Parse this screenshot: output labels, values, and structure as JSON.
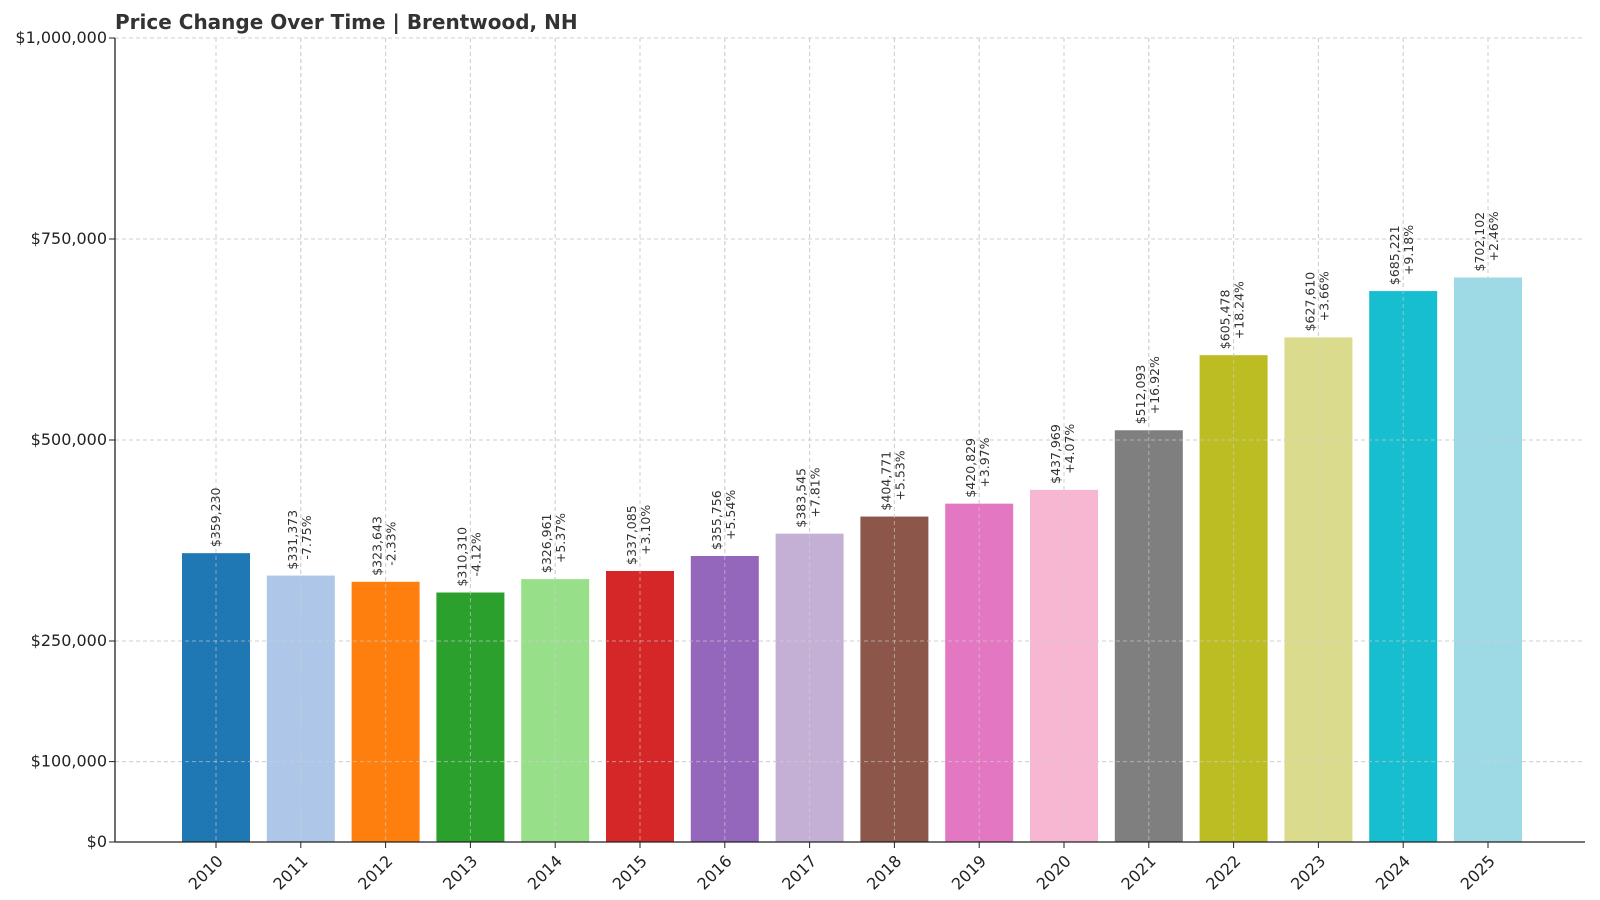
{
  "chart_data": {
    "type": "bar",
    "title": "Price Change Over Time | Brentwood, NH",
    "xlabel": "",
    "ylabel": "",
    "categories": [
      "2010",
      "2011",
      "2012",
      "2013",
      "2014",
      "2015",
      "2016",
      "2017",
      "2018",
      "2019",
      "2020",
      "2021",
      "2022",
      "2023",
      "2024",
      "2025"
    ],
    "values": [
      359230,
      331373,
      323643,
      310310,
      326961,
      337085,
      355756,
      383545,
      404771,
      420829,
      437969,
      512093,
      605478,
      627610,
      685221,
      702102
    ],
    "value_labels": [
      "$359,230",
      "$331,373",
      "$323,643",
      "$310,310",
      "$326,961",
      "$337,085",
      "$355,756",
      "$383,545",
      "$404,771",
      "$420,829",
      "$437,969",
      "$512,093",
      "$605,478",
      "$627,610",
      "$685,221",
      "$702,102"
    ],
    "change_labels": [
      "",
      "-7.75%",
      "-2.33%",
      "-4.12%",
      "+5.37%",
      "+3.10%",
      "+5.54%",
      "+7.81%",
      "+5.53%",
      "+3.97%",
      "+4.07%",
      "+16.92%",
      "+18.24%",
      "+3.66%",
      "+9.18%",
      "+2.46%"
    ],
    "colors": [
      "#1f77b4",
      "#aec7e8",
      "#ff7f0e",
      "#2ca02c",
      "#98df8a",
      "#d62728",
      "#9467bd",
      "#c5b0d5",
      "#8c564b",
      "#e377c2",
      "#f7b6d2",
      "#7f7f7f",
      "#bcbd22",
      "#dbdb8d",
      "#17becf",
      "#9edae5"
    ],
    "y_ticks": [
      0,
      100000,
      250000,
      500000,
      750000,
      1000000
    ],
    "y_tick_labels": [
      "$0",
      "$100,000",
      "$250,000",
      "$500,000",
      "$750,000",
      "$1,000,000"
    ],
    "ylim": [
      0,
      1000000
    ],
    "grid": true,
    "legend": "none"
  }
}
